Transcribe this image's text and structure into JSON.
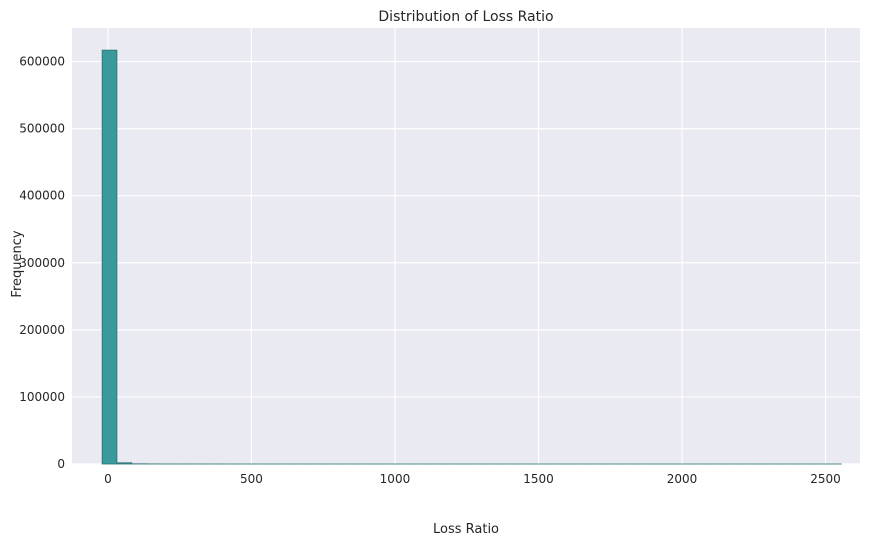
{
  "chart_data": {
    "type": "bar",
    "title": "Distribution of Loss Ratio",
    "xlabel": "Loss Ratio",
    "ylabel": "Frequency",
    "xlim": [
      -125,
      2620
    ],
    "ylim": [
      0,
      650000
    ],
    "xticks": [
      0,
      500,
      1000,
      1500,
      2000,
      2500
    ],
    "yticks": [
      0,
      100000,
      200000,
      300000,
      400000,
      500000,
      600000
    ],
    "grid": true,
    "legend": "none",
    "colors": {
      "bar_fill": "#3a9a9b",
      "bar_edge": "#2b6f70",
      "plot_bg": "#eaeaf2",
      "grid": "#ffffff"
    },
    "bins": {
      "start": -20,
      "width": 51.5,
      "counts": [
        617000,
        1800,
        300,
        120,
        80,
        50,
        40,
        30,
        25,
        20,
        18,
        15,
        12,
        10,
        9,
        8,
        7,
        6,
        5,
        5,
        4,
        4,
        3,
        3,
        3,
        2,
        2,
        2,
        2,
        2,
        1,
        1,
        1,
        1,
        1,
        1,
        1,
        1,
        1,
        1,
        1,
        1,
        1,
        1,
        1,
        1,
        1,
        1,
        1,
        1
      ]
    }
  }
}
